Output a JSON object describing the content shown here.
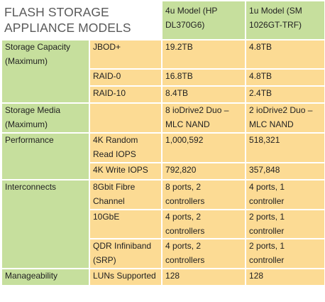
{
  "title": "FLASH STORAGE APPLIANCE MODELS",
  "headers": {
    "model_4u": "4u Model (HP DL370G6)",
    "model_1u": "1u Model (SM 1026GT-TRF)"
  },
  "rows": [
    {
      "category": "Storage Capacity (Maximum)",
      "sub": "JBOD+",
      "v4u": "19.2TB",
      "v1u": "4.8TB"
    },
    {
      "category": "",
      "sub": "RAID-0",
      "v4u": "16.8TB",
      "v1u": "4.8TB"
    },
    {
      "category": "",
      "sub": "RAID-10",
      "v4u": "8.4TB",
      "v1u": "2.4TB"
    },
    {
      "category": "Storage Media (Maximum)",
      "sub": "",
      "v4u": "8 ioDrive2 Duo – MLC NAND",
      "v1u": "2 ioDrive2 Duo – MLC NAND"
    },
    {
      "category": "Performance",
      "sub": "4K Random Read IOPS",
      "v4u": "1,000,592",
      "v1u": "518,321"
    },
    {
      "category": "",
      "sub": "4K Write IOPS",
      "v4u": "792,820",
      "v1u": "357,848"
    },
    {
      "category": "Interconnects",
      "sub": "8Gbit Fibre Channel",
      "v4u": "8 ports, 2 controllers",
      "v1u": "4 ports, 1 controller"
    },
    {
      "category": "",
      "sub": "10GbE",
      "v4u": "4 ports, 2 controllers",
      "v1u": "2 ports, 1 controller"
    },
    {
      "category": "",
      "sub": "QDR Infiniband (SRP)",
      "v4u": "4 ports, 2 controllers",
      "v1u": "2 ports, 1 controller"
    },
    {
      "category": "Manageability",
      "sub": "LUNs Supported",
      "v4u": "128",
      "v1u": "128"
    }
  ],
  "colors": {
    "header_green": "#c6df9d",
    "cell_yellow": "#fcdb94",
    "title_gray": "#5a5a5a"
  }
}
